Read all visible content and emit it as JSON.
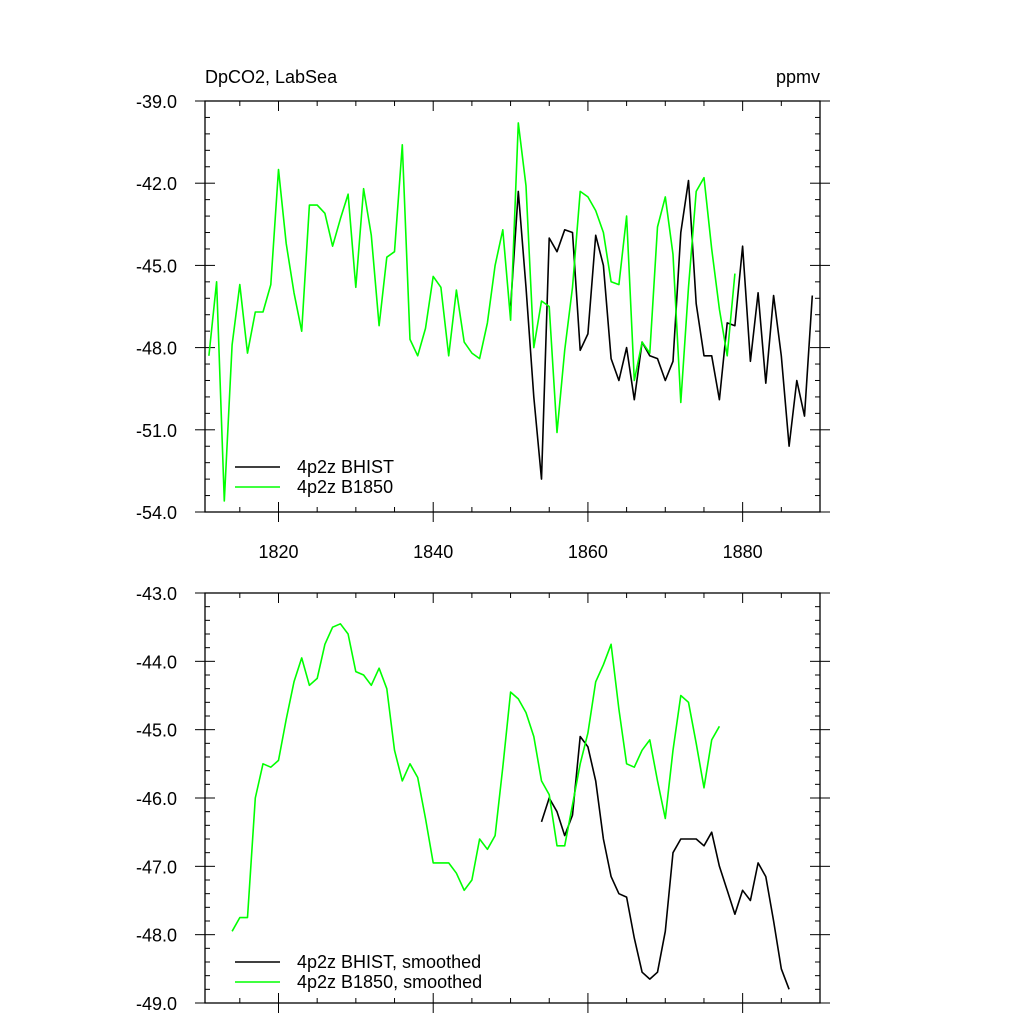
{
  "chart_data": [
    {
      "type": "line",
      "title_left": "DpCO2, LabSea",
      "title_right": "ppmv",
      "xlim": [
        1810.5,
        1890
      ],
      "ylim": [
        -54,
        -39
      ],
      "x_ticks": [
        1820,
        1840,
        1860,
        1880
      ],
      "x_tick_labels": [
        "1820",
        "1840",
        "1860",
        "1880"
      ],
      "y_ticks": [
        -54,
        -51,
        -48,
        -45,
        -42,
        -39
      ],
      "y_tick_labels": [
        "-54.0",
        "-51.0",
        "-48.0",
        "-45.0",
        "-42.0",
        "-39.0"
      ],
      "legend_position": "lower-left",
      "series": [
        {
          "name": "4p2z BHIST",
          "color": "#000000",
          "x": [
            1850,
            1851,
            1852,
            1853,
            1854,
            1855,
            1856,
            1857,
            1858,
            1859,
            1860,
            1861,
            1862,
            1863,
            1864,
            1865,
            1866,
            1867,
            1868,
            1869,
            1870,
            1871,
            1872,
            1873,
            1874,
            1875,
            1876,
            1877,
            1878,
            1879,
            1880,
            1881,
            1882,
            1883,
            1884,
            1885,
            1886,
            1887,
            1888,
            1889
          ],
          "values": [
            -46.5,
            -42.3,
            -45.8,
            -49.8,
            -52.8,
            -44.0,
            -44.5,
            -43.7,
            -43.8,
            -48.1,
            -47.5,
            -43.9,
            -45.0,
            -48.4,
            -49.2,
            -48.0,
            -49.9,
            -47.8,
            -48.3,
            -48.4,
            -49.2,
            -48.5,
            -43.8,
            -41.9,
            -46.4,
            -48.3,
            -48.3,
            -49.9,
            -47.1,
            -47.2,
            -44.3,
            -48.5,
            -46.0,
            -49.3,
            -46.1,
            -48.3,
            -51.6,
            -49.2,
            -50.5,
            -46.1
          ]
        },
        {
          "name": "4p2z B1850",
          "color": "#00ff00",
          "x": [
            1811,
            1812,
            1813,
            1814,
            1815,
            1816,
            1817,
            1818,
            1819,
            1820,
            1821,
            1822,
            1823,
            1824,
            1825,
            1826,
            1827,
            1828,
            1829,
            1830,
            1831,
            1832,
            1833,
            1834,
            1835,
            1836,
            1837,
            1838,
            1839,
            1840,
            1841,
            1842,
            1843,
            1844,
            1845,
            1846,
            1847,
            1848,
            1849,
            1850,
            1851,
            1852,
            1853,
            1854,
            1855,
            1856,
            1857,
            1858,
            1859,
            1860,
            1861,
            1862,
            1863,
            1864,
            1865,
            1866,
            1867,
            1868,
            1869,
            1870,
            1871,
            1872,
            1873,
            1874,
            1875,
            1876,
            1877,
            1878,
            1879
          ],
          "values": [
            -48.3,
            -45.6,
            -53.6,
            -47.9,
            -45.7,
            -48.2,
            -46.7,
            -46.7,
            -45.7,
            -41.5,
            -44.2,
            -46.0,
            -47.4,
            -42.8,
            -42.8,
            -43.1,
            -44.3,
            -43.3,
            -42.4,
            -45.8,
            -42.2,
            -43.9,
            -47.2,
            -44.7,
            -44.5,
            -40.6,
            -47.7,
            -48.3,
            -47.3,
            -45.4,
            -45.8,
            -48.3,
            -45.9,
            -47.8,
            -48.2,
            -48.4,
            -47.1,
            -45.0,
            -43.7,
            -47.0,
            -39.8,
            -42.1,
            -48.0,
            -46.3,
            -46.5,
            -51.1,
            -48.1,
            -45.8,
            -42.3,
            -42.5,
            -43.0,
            -43.8,
            -45.6,
            -45.7,
            -43.2,
            -49.2,
            -47.8,
            -48.2,
            -43.6,
            -42.5,
            -44.6,
            -50.0,
            -45.8,
            -42.3,
            -41.8,
            -44.4,
            -46.6,
            -48.3,
            -45.3
          ]
        }
      ]
    },
    {
      "type": "line",
      "title_left": "",
      "title_right": "",
      "xlim": [
        1810.5,
        1890
      ],
      "ylim": [
        -49,
        -43
      ],
      "x_ticks": [
        1820,
        1840,
        1860,
        1880
      ],
      "x_tick_labels": [
        "",
        "",
        "",
        ""
      ],
      "y_ticks": [
        -49,
        -48,
        -47,
        -46,
        -45,
        -44,
        -43
      ],
      "y_tick_labels": [
        "-49.0",
        "-48.0",
        "-47.0",
        "-46.0",
        "-45.0",
        "-44.0",
        "-43.0"
      ],
      "legend_position": "lower-left",
      "series": [
        {
          "name": "4p2z BHIST, smoothed",
          "color": "#000000",
          "x": [
            1854,
            1855,
            1856,
            1857,
            1858,
            1859,
            1860,
            1861,
            1862,
            1863,
            1864,
            1865,
            1866,
            1867,
            1868,
            1869,
            1870,
            1871,
            1872,
            1873,
            1874,
            1875,
            1876,
            1877,
            1878,
            1879,
            1880,
            1881,
            1882,
            1883,
            1884,
            1885,
            1886
          ],
          "values": [
            -46.35,
            -46.0,
            -46.2,
            -46.55,
            -46.25,
            -45.1,
            -45.25,
            -45.75,
            -46.6,
            -47.15,
            -47.4,
            -47.45,
            -48.05,
            -48.55,
            -48.65,
            -48.55,
            -47.95,
            -46.8,
            -46.6,
            -46.6,
            -46.6,
            -46.7,
            -46.5,
            -47.0,
            -47.35,
            -47.7,
            -47.35,
            -47.5,
            -46.95,
            -47.15,
            -47.8,
            -48.5,
            -48.8
          ]
        },
        {
          "name": "4p2z B1850, smoothed",
          "color": "#00ff00",
          "x": [
            1814,
            1815,
            1816,
            1817,
            1818,
            1819,
            1820,
            1821,
            1822,
            1823,
            1824,
            1825,
            1826,
            1827,
            1828,
            1829,
            1830,
            1831,
            1832,
            1833,
            1834,
            1835,
            1836,
            1837,
            1838,
            1839,
            1840,
            1841,
            1842,
            1843,
            1844,
            1845,
            1846,
            1847,
            1848,
            1849,
            1850,
            1851,
            1852,
            1853,
            1854,
            1855,
            1856,
            1857,
            1858,
            1859,
            1860,
            1861,
            1862,
            1863,
            1864,
            1865,
            1866,
            1867,
            1868,
            1869,
            1870,
            1871,
            1872,
            1873,
            1874,
            1875,
            1876,
            1877
          ],
          "values": [
            -47.95,
            -47.75,
            -47.75,
            -46.0,
            -45.5,
            -45.55,
            -45.45,
            -44.85,
            -44.3,
            -43.95,
            -44.35,
            -44.25,
            -43.75,
            -43.5,
            -43.45,
            -43.6,
            -44.15,
            -44.2,
            -44.35,
            -44.1,
            -44.4,
            -45.3,
            -45.75,
            -45.5,
            -45.7,
            -46.3,
            -46.95,
            -46.95,
            -46.95,
            -47.1,
            -47.35,
            -47.2,
            -46.6,
            -46.75,
            -46.55,
            -45.55,
            -44.45,
            -44.55,
            -44.75,
            -45.1,
            -45.75,
            -45.95,
            -46.7,
            -46.7,
            -46.1,
            -45.5,
            -45.05,
            -44.3,
            -44.05,
            -43.75,
            -44.7,
            -45.5,
            -45.55,
            -45.3,
            -45.15,
            -45.75,
            -46.3,
            -45.3,
            -44.5,
            -44.6,
            -45.2,
            -45.85,
            -45.15,
            -44.95
          ]
        }
      ]
    }
  ]
}
